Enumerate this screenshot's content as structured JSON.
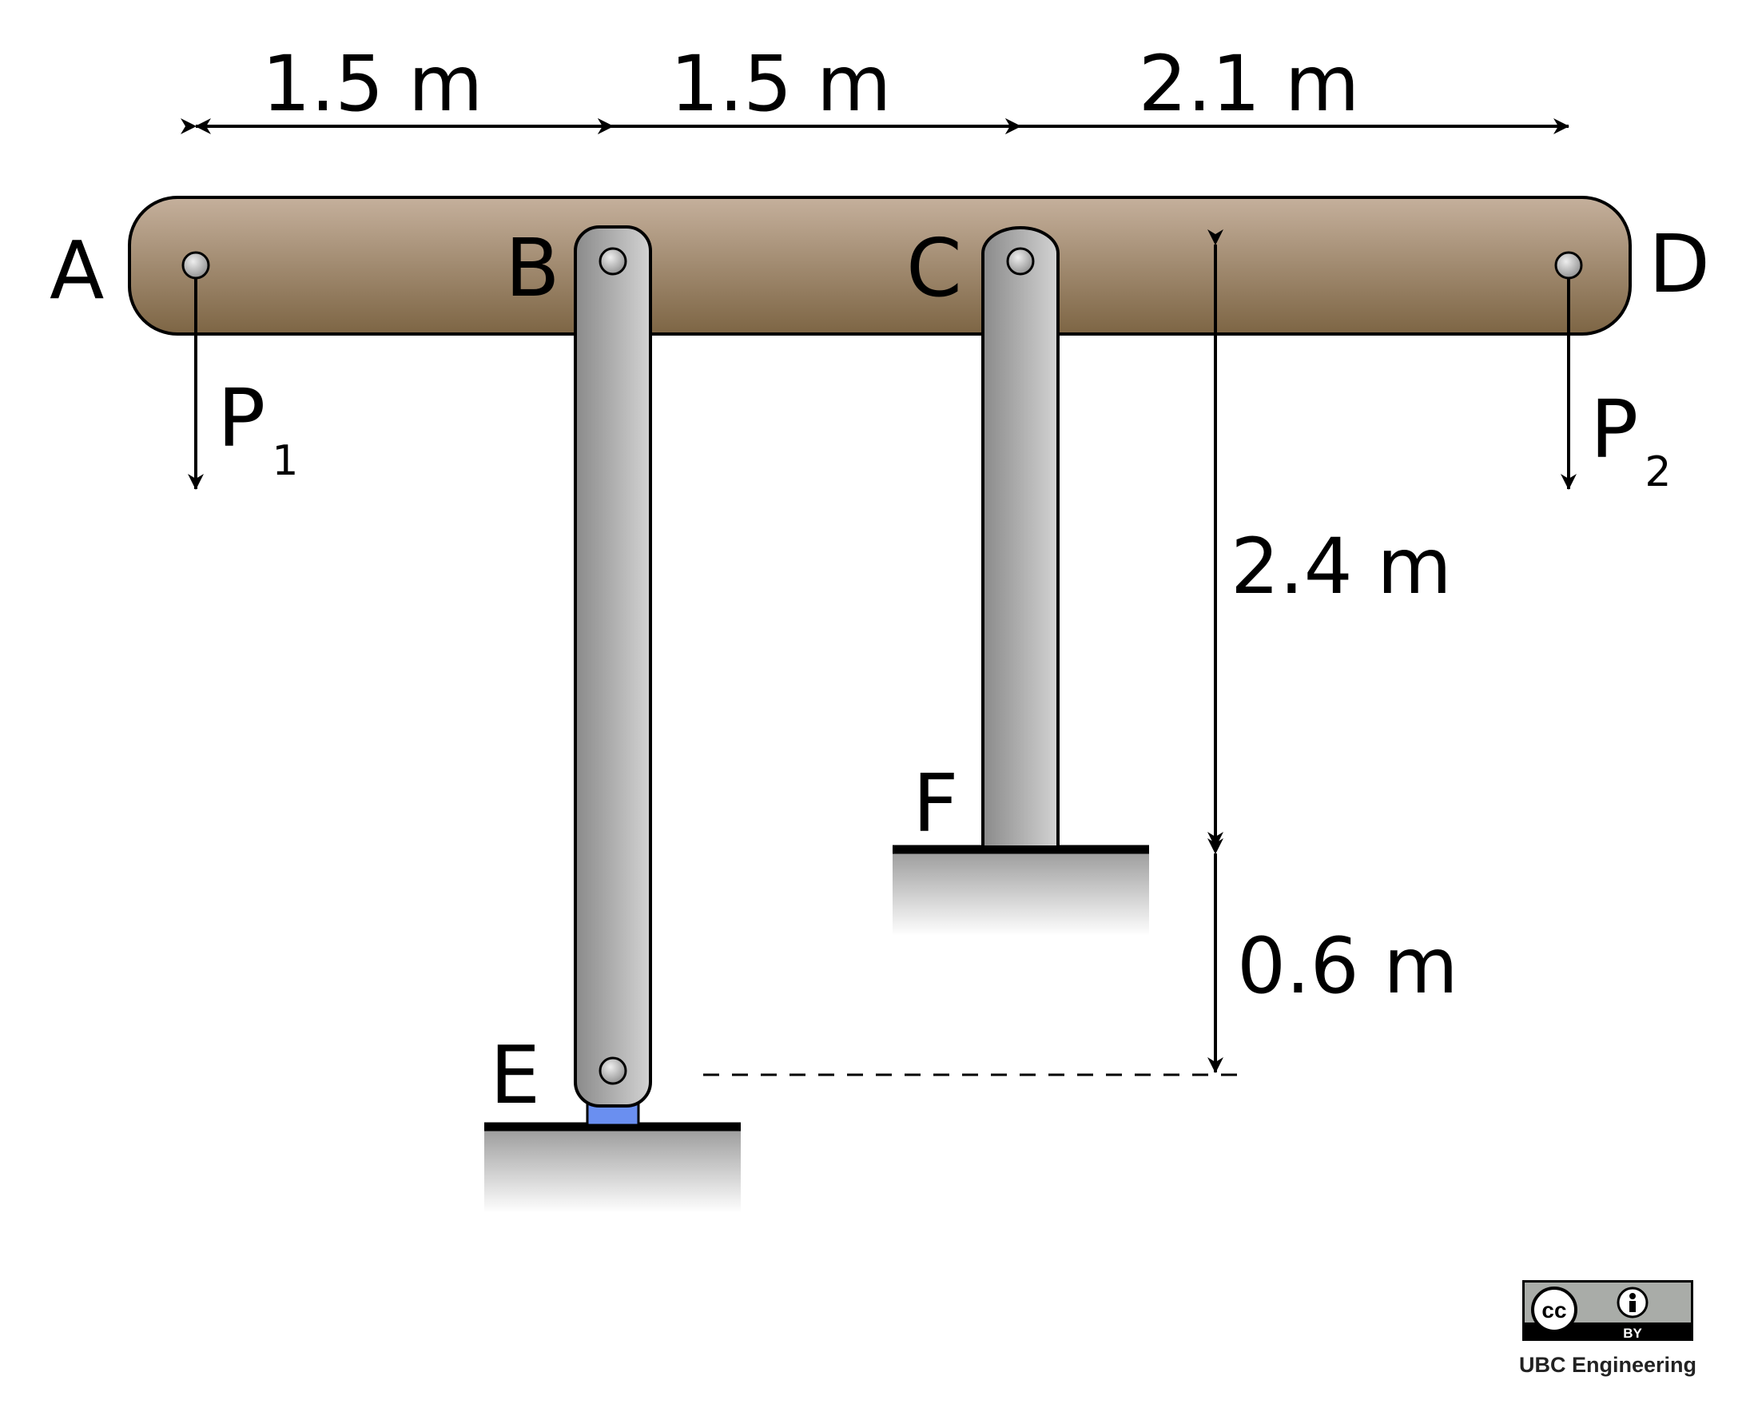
{
  "points": {
    "a": "A",
    "b": "B",
    "c": "C",
    "d": "D",
    "e": "E",
    "f": "F"
  },
  "loads": {
    "p1": {
      "symbol": "P",
      "subscript": "1"
    },
    "p2": {
      "symbol": "P",
      "subscript": "2"
    }
  },
  "dimensions": {
    "ab": "1.5 m",
    "bc": "1.5 m",
    "cd": "2.1 m",
    "beam_to_f": "2.4 m",
    "f_to_e": "0.6 m"
  },
  "colors": {
    "beam_top": "#c5b09c",
    "beam_bottom": "#7d6544",
    "link_light": "#d3d3d3",
    "link_dark": "#8a8a8a",
    "pin_block": "#6a8ff0",
    "ground": "#000000"
  },
  "license": {
    "icon": "cc-by-icon",
    "cc_text": "cc",
    "by_text": "BY",
    "credit": "UBC Engineering"
  }
}
